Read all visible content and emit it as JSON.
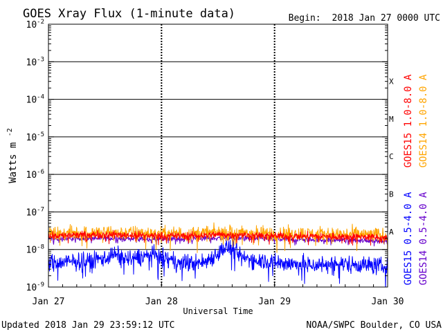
{
  "chart_data": {
    "type": "line",
    "title": "GOES Xray Flux (1-minute data)",
    "begin_label": "Begin:",
    "begin_value": "2018 Jan 27 0000 UTC",
    "xlabel": "Universal Time",
    "ylabel_base": "Watts m",
    "ylabel_exponent": "-2",
    "yscale": "log",
    "ylim": [
      1e-09,
      0.01
    ],
    "y_ticks": [
      {
        "value": 0.01,
        "base": "10",
        "exp": "-2"
      },
      {
        "value": 0.001,
        "base": "10",
        "exp": "-3"
      },
      {
        "value": 0.0001,
        "base": "10",
        "exp": "-4"
      },
      {
        "value": 1e-05,
        "base": "10",
        "exp": "-5"
      },
      {
        "value": 1e-06,
        "base": "10",
        "exp": "-6"
      },
      {
        "value": 1e-07,
        "base": "10",
        "exp": "-7"
      },
      {
        "value": 1e-08,
        "base": "10",
        "exp": "-8"
      },
      {
        "value": 1e-09,
        "base": "10",
        "exp": "-9"
      }
    ],
    "xlim": [
      0,
      72
    ],
    "x_ticks": [
      {
        "hours": 0,
        "label": "Jan 27"
      },
      {
        "hours": 24,
        "label": "Jan 28"
      },
      {
        "hours": 48,
        "label": "Jan 29"
      },
      {
        "hours": 72,
        "label": "Jan 30"
      }
    ],
    "flare_classes": [
      {
        "label": "X",
        "value": 0.0003
      },
      {
        "label": "M",
        "value": 3e-05
      },
      {
        "label": "C",
        "value": 3e-06
      },
      {
        "label": "B",
        "value": 3e-07
      },
      {
        "label": "A",
        "value": 3e-08
      }
    ],
    "series": [
      {
        "name": "GOES15 1.0-8.0 A",
        "color": "#ff0000",
        "points": [
          [
            0,
            2.3e-08
          ],
          [
            6,
            2.4e-08
          ],
          [
            12,
            2.5e-08
          ],
          [
            18,
            2.4e-08
          ],
          [
            24,
            2.3e-08
          ],
          [
            30,
            2.3e-08
          ],
          [
            36,
            2.5e-08
          ],
          [
            42,
            2.4e-08
          ],
          [
            48,
            2.3e-08
          ],
          [
            54,
            2.3e-08
          ],
          [
            60,
            2.2e-08
          ],
          [
            66,
            2.2e-08
          ],
          [
            72,
            2e-08
          ]
        ],
        "noise": 0.15
      },
      {
        "name": "GOES14 1.0-8.0 A",
        "color": "#ffa500",
        "points": [
          [
            0,
            2.5e-08
          ],
          [
            6,
            2.7e-08
          ],
          [
            12,
            2.8e-08
          ],
          [
            18,
            2.7e-08
          ],
          [
            24,
            2.6e-08
          ],
          [
            30,
            2.6e-08
          ],
          [
            36,
            2.8e-08
          ],
          [
            42,
            2.7e-08
          ],
          [
            48,
            2.6e-08
          ],
          [
            54,
            2.6e-08
          ],
          [
            60,
            2.5e-08
          ],
          [
            66,
            2.5e-08
          ],
          [
            72,
            2.3e-08
          ]
        ],
        "noise": 0.3
      },
      {
        "name": "GOES15 0.5-4.0 A",
        "color": "#0000ff",
        "points": [
          [
            0,
            4.2e-09
          ],
          [
            4,
            4.6e-09
          ],
          [
            9,
            5e-09
          ],
          [
            12,
            6e-09
          ],
          [
            14,
            7.5e-09
          ],
          [
            17,
            5.5e-09
          ],
          [
            20,
            6.5e-09
          ],
          [
            22,
            7.2e-09
          ],
          [
            25,
            5.5e-09
          ],
          [
            28,
            4.3e-09
          ],
          [
            33,
            4.5e-09
          ],
          [
            36,
            8e-09
          ],
          [
            37.5,
            1.15e-08
          ],
          [
            39,
            1e-08
          ],
          [
            41,
            6e-09
          ],
          [
            46,
            5e-09
          ],
          [
            50,
            4.3e-09
          ],
          [
            56,
            3.8e-09
          ],
          [
            62,
            4.2e-09
          ],
          [
            66,
            4e-09
          ],
          [
            72,
            3.5e-09
          ]
        ],
        "noise": 0.35
      },
      {
        "name": "GOES14 0.5-4.0 A",
        "color": "#6600cc",
        "points": [
          [
            0,
            1.9e-08
          ],
          [
            12,
            2e-08
          ],
          [
            24,
            1.9e-08
          ],
          [
            36,
            2e-08
          ],
          [
            48,
            1.9e-08
          ],
          [
            60,
            1.8e-08
          ],
          [
            72,
            1.7e-08
          ]
        ],
        "noise": 0.1
      }
    ],
    "grid": true
  },
  "footer": {
    "updated": "Updated 2018 Jan 29 23:59:12 UTC",
    "credit": "NOAA/SWPC Boulder, CO USA"
  }
}
